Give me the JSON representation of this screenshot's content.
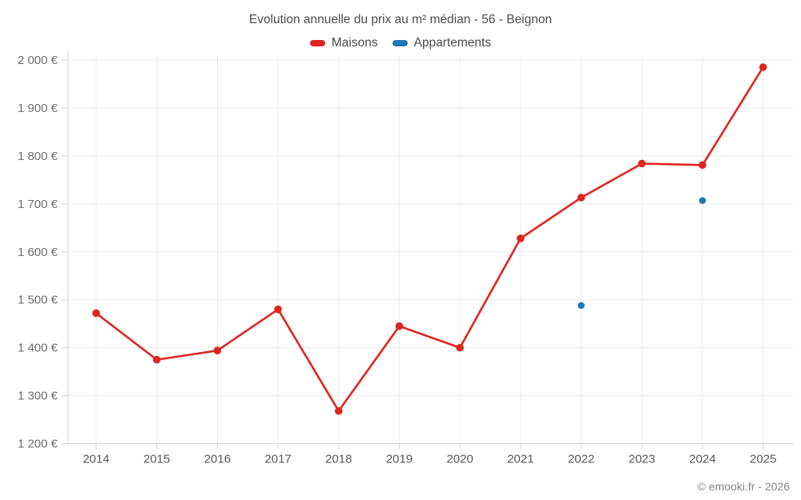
{
  "header": {
    "title": "Evolution annuelle du prix au m² médian - 56 - Beignon"
  },
  "footer": {
    "credit": "© emooki.fr - 2026"
  },
  "chart_data": {
    "type": "line",
    "title": "Evolution annuelle du prix au m² médian - 56 - Beignon",
    "categories": [
      2014,
      2015,
      2016,
      2017,
      2018,
      2019,
      2020,
      2021,
      2022,
      2023,
      2024,
      2025
    ],
    "series": [
      {
        "name": "Maisons",
        "type": "line-with-markers",
        "color": "#e0241f",
        "values": [
          1472,
          1375,
          1394,
          1480,
          1268,
          1445,
          1400,
          1628,
          1713,
          1784,
          1781,
          1985
        ]
      },
      {
        "name": "Appartements",
        "type": "markers-only",
        "color": "#1f78b4",
        "values": [
          null,
          null,
          null,
          null,
          null,
          null,
          null,
          null,
          1488,
          null,
          1707,
          null
        ]
      }
    ],
    "ylabel": "",
    "xlabel": "",
    "ylim": [
      1200,
      2000
    ],
    "ytick_step": 100,
    "ytick_labels": [
      "1 200 €",
      "1 300 €",
      "1 400 €",
      "1 500 €",
      "1 600 €",
      "1 700 €",
      "1 800 €",
      "1 900 €",
      "2 000 €"
    ],
    "currency": "EUR",
    "grid": true,
    "legend_position": "top",
    "colors": {
      "grid_line": "#ececec",
      "axis_line": "#d4d4d4",
      "title_text": "#4d4d4d",
      "tick_text": "#6e6e6e"
    }
  }
}
